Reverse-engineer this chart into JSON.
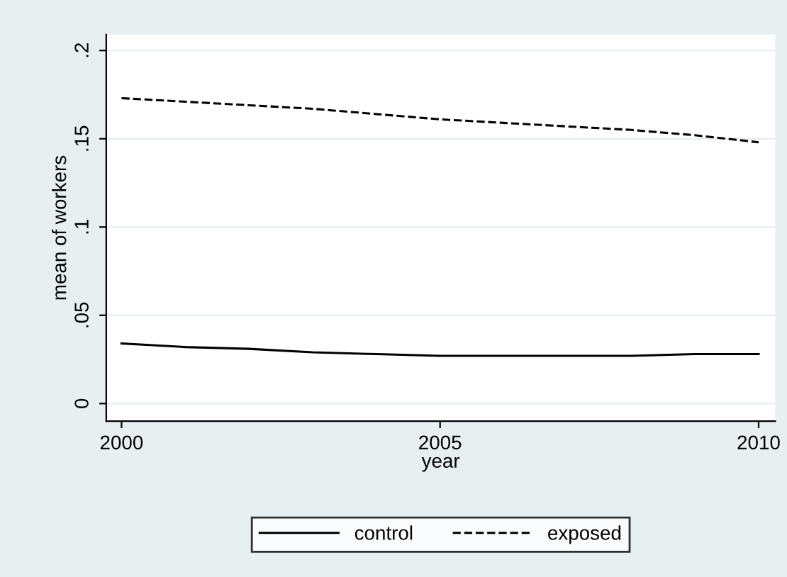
{
  "chart_data": {
    "type": "line",
    "xlabel": "year",
    "ylabel": "mean of workers",
    "x": [
      2000,
      2001,
      2002,
      2003,
      2004,
      2005,
      2006,
      2007,
      2008,
      2009,
      2010
    ],
    "series": [
      {
        "name": "control",
        "color": "#000000",
        "line_style": "solid",
        "values": [
          0.034,
          0.032,
          0.031,
          0.029,
          0.028,
          0.027,
          0.027,
          0.027,
          0.027,
          0.028,
          0.028
        ]
      },
      {
        "name": "exposed",
        "color": "#000000",
        "line_style": "dashed",
        "values": [
          0.173,
          0.171,
          0.169,
          0.167,
          0.164,
          0.161,
          0.159,
          0.157,
          0.155,
          0.152,
          0.148
        ]
      }
    ],
    "xlim": [
      1999.76,
      2010.26
    ],
    "xticks": [
      2000,
      2005,
      2010
    ],
    "ylim": [
      -0.01,
      0.209
    ],
    "yticks": [
      {
        "value": 0,
        "label": "0"
      },
      {
        "value": 0.05,
        "label": ".05"
      },
      {
        "value": 0.1,
        "label": ".1"
      },
      {
        "value": 0.15,
        "label": ".15"
      },
      {
        "value": 0.2,
        "label": ".2"
      }
    ],
    "grid": "y",
    "legend": "bottom"
  }
}
